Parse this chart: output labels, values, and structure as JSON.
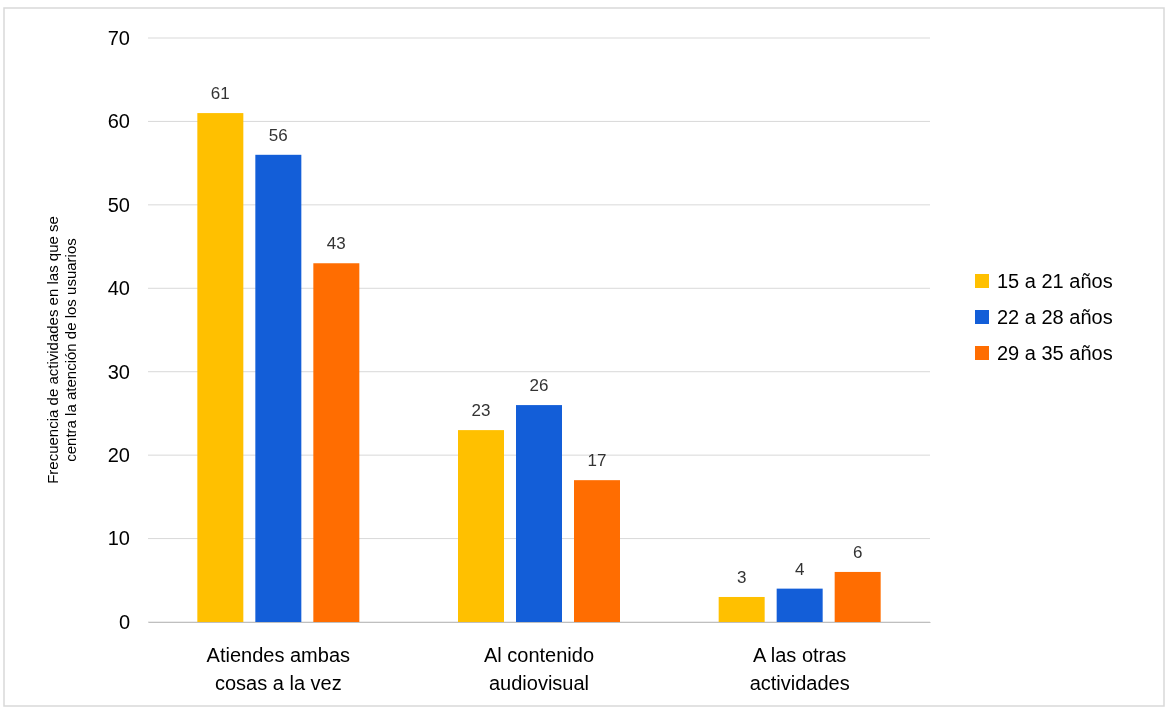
{
  "chart_data": {
    "type": "bar",
    "ylabel": "Frecuencia de actividades en las que se\ncentra la atención de los usuarios",
    "categories": [
      "Atiendes ambas\ncosas a la vez",
      "Al contenido\naudiovisual",
      "A las otras\nactividades"
    ],
    "series": [
      {
        "name": "15 a 21 años",
        "color": "#ffc000",
        "values": [
          61,
          23,
          3
        ]
      },
      {
        "name": "22 a 28 años",
        "color": "#135ed8",
        "values": [
          56,
          26,
          4
        ]
      },
      {
        "name": "29 a 35 años",
        "color": "#ff6d01",
        "values": [
          43,
          17,
          6
        ]
      }
    ],
    "ylim": [
      0,
      70
    ],
    "yticks": [
      0,
      10,
      20,
      30,
      40,
      50,
      60,
      70
    ],
    "grid": "y",
    "legend": "right",
    "data_labels": true
  }
}
